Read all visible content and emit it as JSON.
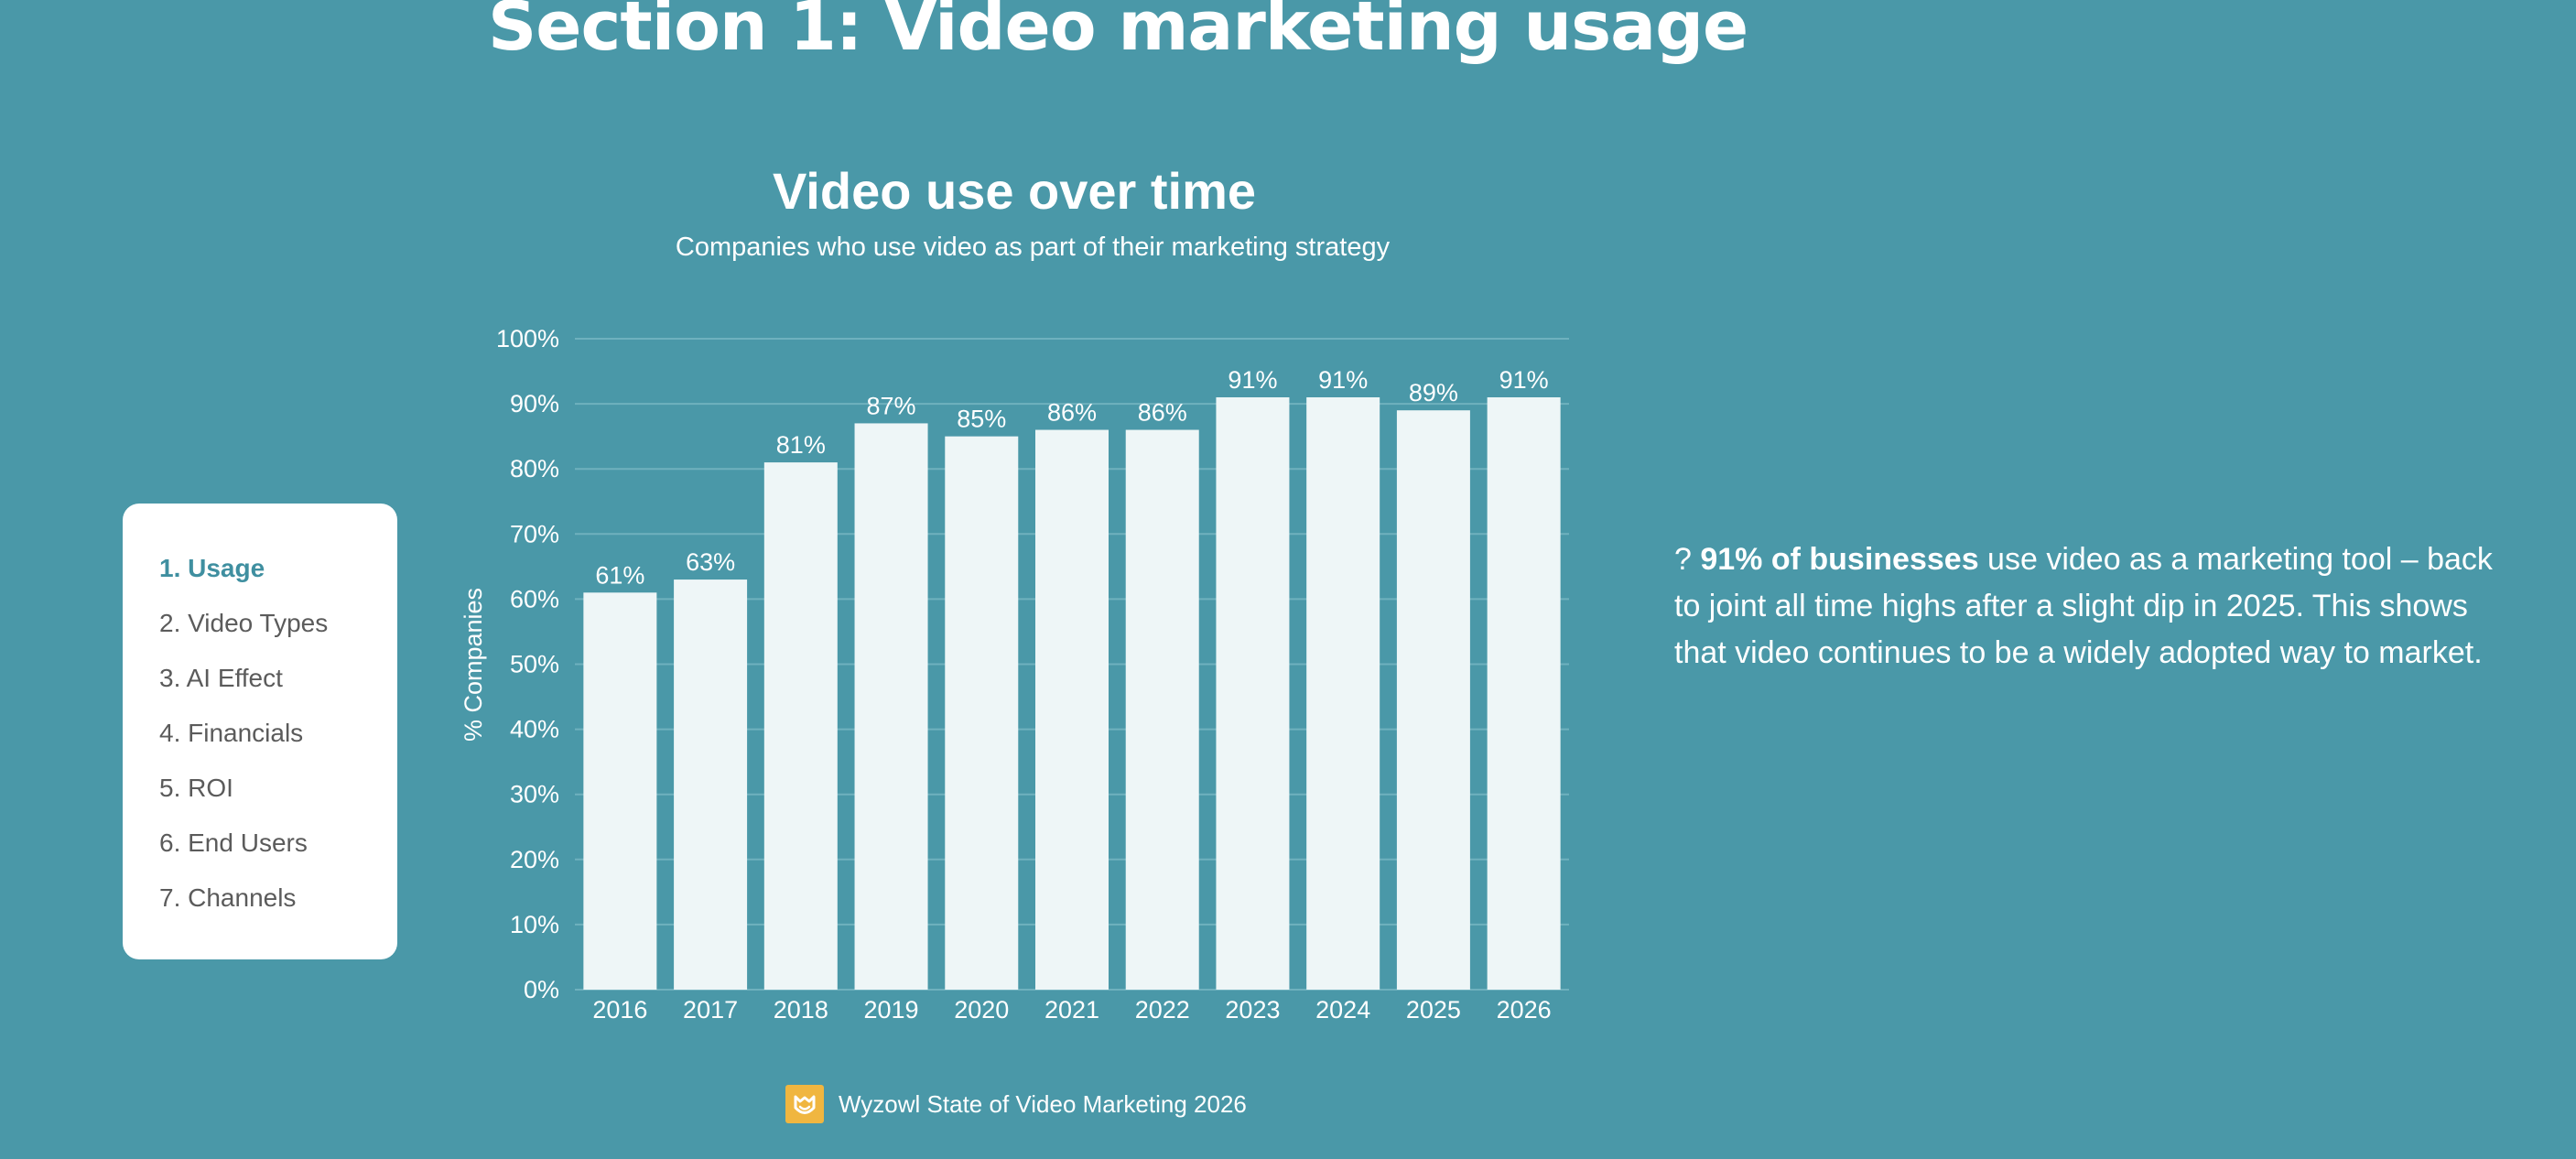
{
  "page": {
    "section_title": "Section 1: Video marketing usage",
    "insight": {
      "prefix": "? ",
      "bold": "91% of businesses",
      "text": " use video as a marketing tool – back to joint all time highs after a slight dip in 2025. This shows that video continues to be a widely adopted way to market."
    },
    "source": "Wyzowl State of Video Marketing 2026",
    "logo_icon": "wyzowl-owl-logo"
  },
  "nav": {
    "items": [
      {
        "label": "1. Usage",
        "active": true
      },
      {
        "label": "2. Video Types",
        "active": false
      },
      {
        "label": "3. AI Effect",
        "active": false
      },
      {
        "label": "4. Financials",
        "active": false
      },
      {
        "label": "5. ROI",
        "active": false
      },
      {
        "label": "6. End Users",
        "active": false
      },
      {
        "label": "7. Channels",
        "active": false
      }
    ]
  },
  "colors": {
    "background": "#4a98a8",
    "bar": "#eef6f7",
    "gridline": "#6fb1be",
    "nav_active": "#3f8fa0",
    "logo": "#f0b640"
  },
  "chart_data": {
    "type": "bar",
    "title": "Video use over time",
    "subtitle": "Companies who use video as part of their marketing strategy",
    "xlabel": "",
    "ylabel": "% Companies",
    "categories": [
      "2016",
      "2017",
      "2018",
      "2019",
      "2020",
      "2021",
      "2022",
      "2023",
      "2024",
      "2025",
      "2026"
    ],
    "values": [
      61,
      63,
      81,
      87,
      85,
      86,
      86,
      91,
      91,
      89,
      91
    ],
    "data_labels": [
      "61%",
      "63%",
      "81%",
      "87%",
      "85%",
      "86%",
      "86%",
      "91%",
      "91%",
      "89%",
      "91%"
    ],
    "ylim": [
      0,
      100
    ],
    "yticks": [
      0,
      10,
      20,
      30,
      40,
      50,
      60,
      70,
      80,
      90,
      100
    ],
    "ytick_labels": [
      "0%",
      "10%",
      "20%",
      "30%",
      "40%",
      "50%",
      "60%",
      "70%",
      "80%",
      "90%",
      "100%"
    ],
    "grid": true,
    "legend": "none"
  }
}
